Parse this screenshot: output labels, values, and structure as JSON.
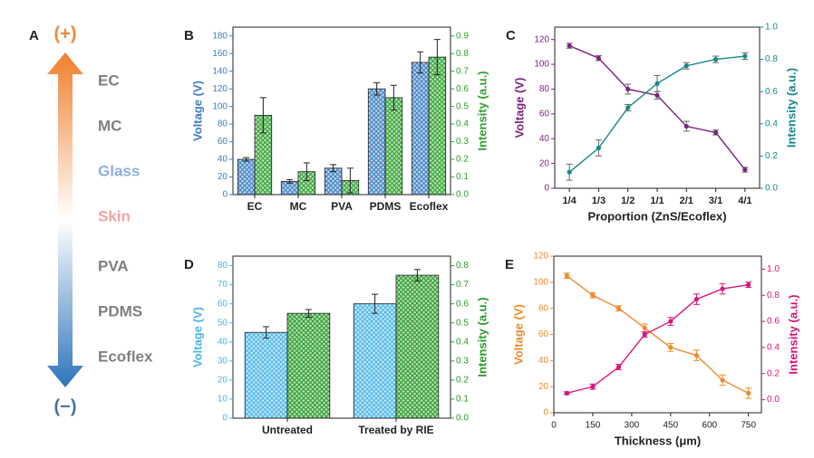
{
  "panel_a": {
    "letter": "A",
    "top": "(+)",
    "bottom": "(−)",
    "materials": [
      "EC",
      "MC",
      "Glass",
      "Skin",
      "PVA",
      "PDMS",
      "Ecoflex"
    ]
  },
  "chart_data": [
    {
      "type": "bar",
      "panel": "B",
      "hatch": true,
      "ylabel": "Voltage (V)",
      "y2label": "Intensity (a.u.)",
      "categories": [
        "EC",
        "MC",
        "PVA",
        "PDMS",
        "Ecoflex"
      ],
      "series": [
        {
          "color": "#3d7fc1",
          "axis": "y",
          "values": [
            40,
            15,
            30,
            120,
            150
          ],
          "errors": [
            2,
            2,
            4,
            7,
            12
          ]
        },
        {
          "color": "#2ea12e",
          "axis": "y2",
          "values": [
            0.45,
            0.13,
            0.08,
            0.55,
            0.78
          ],
          "errors": [
            0.1,
            0.05,
            0.07,
            0.07,
            0.1
          ]
        }
      ],
      "ylim": [
        0,
        190
      ],
      "yticks": [
        0,
        20,
        40,
        60,
        80,
        100,
        120,
        140,
        160,
        180
      ],
      "y2lim": [
        0,
        0.95
      ],
      "y2ticks": [
        {
          "value": 0,
          "label": "0.0"
        },
        0.1,
        0.2,
        0.3,
        0.4,
        0.5,
        0.6,
        0.7,
        0.8,
        0.9
      ]
    },
    {
      "type": "line",
      "panel": "C",
      "ylabel": "Voltage (V)",
      "y2label": "Intensity (a.u.)",
      "xlabel": "Proportion (ZnS/Ecoflex)",
      "categories": [
        "1/4",
        "1/3",
        "1/2",
        "1/1",
        "2/1",
        "3/1",
        "4/1"
      ],
      "series": [
        {
          "color": "#7b237f",
          "axis": "y",
          "values": [
            115,
            105,
            80,
            75,
            50,
            45,
            15
          ],
          "errors": [
            2,
            2,
            4,
            3,
            4,
            2,
            2
          ]
        },
        {
          "color": "#17878a",
          "axis": "y2",
          "values": [
            0.1,
            0.25,
            0.5,
            0.65,
            0.76,
            0.8,
            0.82
          ],
          "errors": [
            0.05,
            0.05,
            0.02,
            0.05,
            0.02,
            0.02,
            0.02
          ]
        }
      ],
      "ylim": [
        0,
        130
      ],
      "yticks": [
        0,
        20,
        40,
        60,
        80,
        100,
        120
      ],
      "y2lim": [
        0,
        1.0
      ],
      "y2ticks": [
        {
          "value": 0,
          "label": "0.0"
        },
        0.2,
        0.4,
        0.6,
        0.8,
        {
          "value": 1,
          "label": "1.0"
        }
      ]
    },
    {
      "type": "bar",
      "panel": "D",
      "hatch": true,
      "ylabel": "Voltage (V)",
      "y2label": "Intensity (a.u.)",
      "categories": [
        "Untreated",
        "Treated by RIE"
      ],
      "series": [
        {
          "color": "#4bb5e6",
          "axis": "y",
          "values": [
            45,
            60
          ],
          "errors": [
            3,
            5
          ]
        },
        {
          "color": "#2a9a2a",
          "axis": "y2",
          "values": [
            0.55,
            0.75
          ],
          "errors": [
            0.02,
            0.03
          ]
        }
      ],
      "ylim": [
        0,
        85
      ],
      "yticks": [
        0,
        10,
        20,
        30,
        40,
        50,
        60,
        70,
        80
      ],
      "y2lim": [
        0,
        0.85
      ],
      "y2ticks": [
        {
          "value": 0,
          "label": "0.0"
        },
        0.1,
        0.2,
        0.3,
        0.4,
        0.5,
        0.6,
        0.7,
        0.8
      ]
    },
    {
      "type": "line",
      "panel": "E",
      "ylabel": "Voltage (V)",
      "y2label": "Intensity (a.u.)",
      "xlabel": "Thickness (μm)",
      "x": [
        50,
        150,
        250,
        350,
        450,
        550,
        650,
        750
      ],
      "xlim": [
        0,
        800
      ],
      "xticks": [
        0,
        150,
        300,
        450,
        600,
        750
      ],
      "series": [
        {
          "color": "#ee8a2b",
          "axis": "y",
          "values": [
            105,
            90,
            80,
            65,
            50,
            44,
            25,
            15
          ],
          "errors": [
            2,
            2,
            2,
            3,
            3,
            4,
            4,
            4
          ]
        },
        {
          "color": "#d6157a",
          "axis": "y2",
          "values": [
            0.05,
            0.1,
            0.25,
            0.5,
            0.6,
            0.77,
            0.85,
            0.88
          ],
          "errors": [
            0.01,
            0.02,
            0.02,
            0.02,
            0.03,
            0.04,
            0.04,
            0.02
          ]
        }
      ],
      "ylim": [
        0,
        120
      ],
      "yticks": [
        0,
        20,
        40,
        60,
        80,
        100,
        120
      ],
      "y2lim": [
        -0.1,
        1.1
      ],
      "y2ticks": [
        {
          "value": 0,
          "label": "0.0"
        },
        0.2,
        0.4,
        0.6,
        0.8,
        {
          "value": 1,
          "label": "1.0"
        }
      ]
    }
  ]
}
